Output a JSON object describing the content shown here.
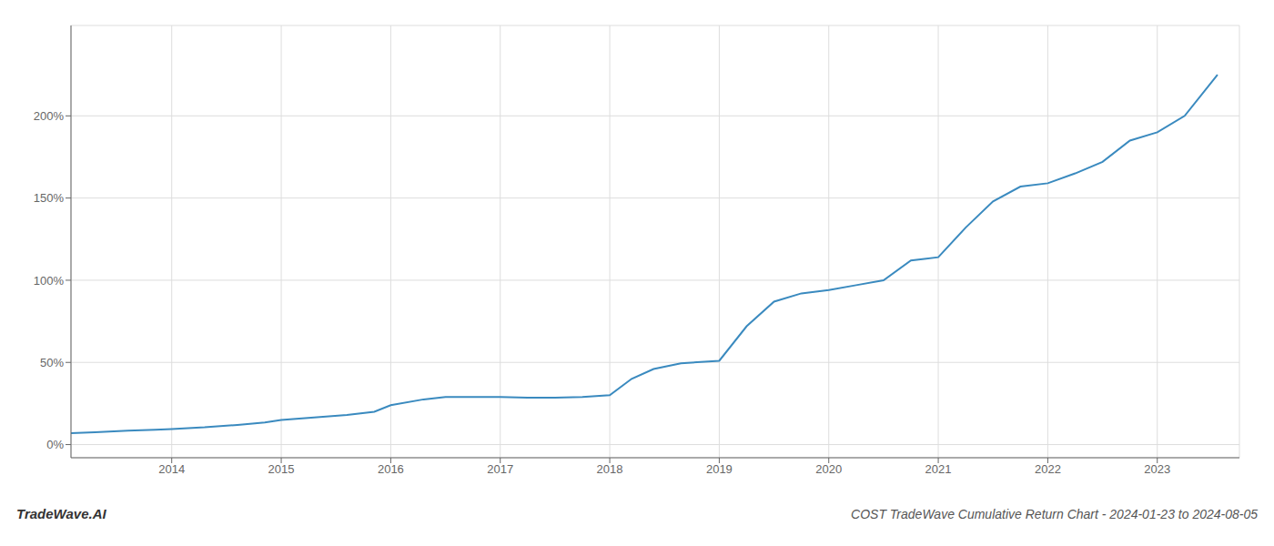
{
  "chart_data": {
    "type": "line",
    "title": "COST TradeWave Cumulative Return Chart - 2024-01-23 to 2024-08-05",
    "annotations": [
      "TradeWave.AI"
    ],
    "color": "#3a8abf",
    "grid": true,
    "x": [
      2013.08,
      2013.3,
      2013.6,
      2013.85,
      2014.0,
      2014.3,
      2014.6,
      2014.85,
      2015.0,
      2015.3,
      2015.6,
      2015.85,
      2016.0,
      2016.3,
      2016.5,
      2016.75,
      2017.0,
      2017.25,
      2017.5,
      2017.75,
      2018.0,
      2018.2,
      2018.4,
      2018.65,
      2019.0,
      2019.25,
      2019.5,
      2019.75,
      2020.0,
      2020.25,
      2020.5,
      2020.75,
      2021.0,
      2021.25,
      2021.5,
      2021.75,
      2022.0,
      2022.25,
      2022.5,
      2022.75,
      2023.0,
      2023.25,
      2023.55
    ],
    "values": [
      7.0,
      7.5,
      8.5,
      9.0,
      9.5,
      10.5,
      12.0,
      13.5,
      15.0,
      16.5,
      18.0,
      20.0,
      24.0,
      27.5,
      29.0,
      29.0,
      29.0,
      28.5,
      28.5,
      29.0,
      30.0,
      40.0,
      46.0,
      49.5,
      51.0,
      72.0,
      87.0,
      92.0,
      94.0,
      97.0,
      100.0,
      112.0,
      114.0,
      132.0,
      148.0,
      157.0,
      159.0,
      165.0,
      172.0,
      185.0,
      190.0,
      200.0,
      225.0
    ],
    "xlim": [
      2013.08,
      2023.75
    ],
    "ylim": [
      -8,
      255
    ],
    "xticks": [
      2014,
      2015,
      2016,
      2017,
      2018,
      2019,
      2020,
      2021,
      2022,
      2023
    ],
    "yticks": [
      {
        "value": 0,
        "label": "0%"
      },
      {
        "value": 50,
        "label": "50%"
      },
      {
        "value": 100,
        "label": "100%"
      },
      {
        "value": 150,
        "label": "150%"
      },
      {
        "value": 200,
        "label": "200%"
      }
    ]
  }
}
